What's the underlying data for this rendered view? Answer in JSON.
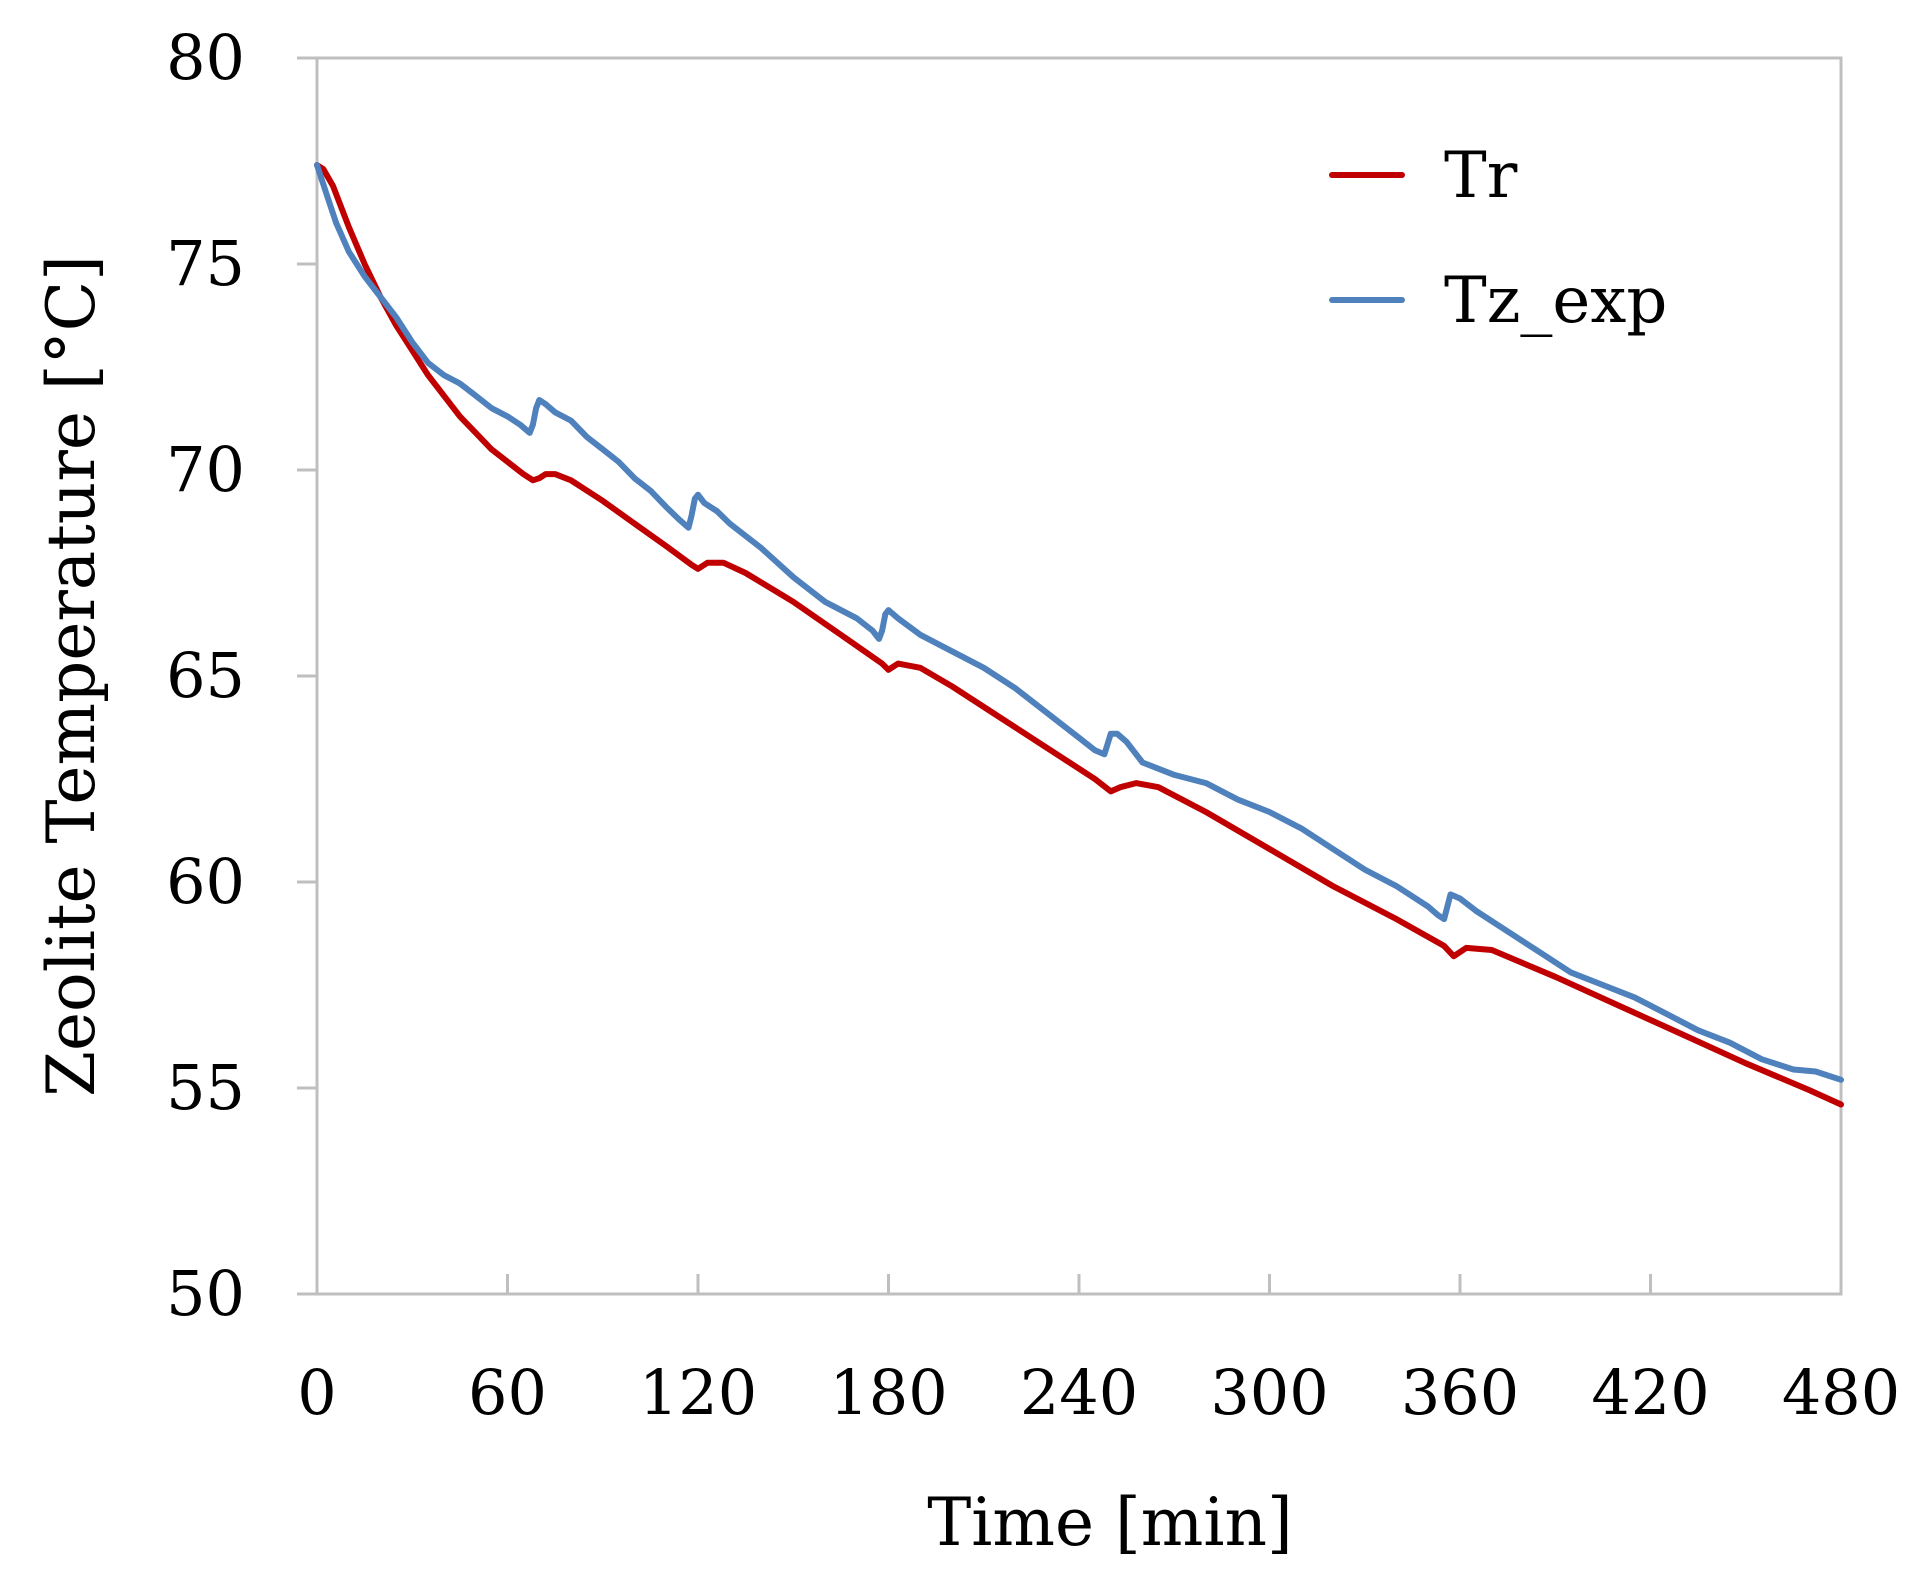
{
  "chart_data": {
    "type": "line",
    "title": "",
    "xlabel": "Time  [min]",
    "ylabel": "Zeolite Temperature  [°C]",
    "xlim": [
      0,
      480
    ],
    "ylim": [
      50,
      80
    ],
    "x_ticks": [
      "0",
      "60",
      "120",
      "180",
      "240",
      "300",
      "360",
      "420",
      "480"
    ],
    "y_ticks": [
      "50",
      "55",
      "60",
      "65",
      "70",
      "75",
      "80"
    ],
    "grid": false,
    "legend_position": "top-right",
    "colors": {
      "Tr": "#c00000",
      "Tz_exp": "#4f81bd",
      "frame": "#bfbfbf"
    },
    "series": [
      {
        "name": "Tr",
        "x": [
          0,
          2,
          5,
          10,
          15,
          20,
          25,
          30,
          35,
          40,
          45,
          50,
          55,
          60,
          65,
          68,
          70,
          72,
          75,
          80,
          90,
          100,
          110,
          118,
          120,
          123,
          128,
          135,
          150,
          165,
          178,
          180,
          183,
          190,
          200,
          215,
          230,
          245,
          250,
          253,
          258,
          265,
          280,
          300,
          320,
          340,
          355,
          358,
          362,
          370,
          390,
          410,
          430,
          450,
          470,
          480
        ],
        "values": [
          77.4,
          77.3,
          76.9,
          75.9,
          75.0,
          74.2,
          73.5,
          72.9,
          72.3,
          71.8,
          71.3,
          70.9,
          70.5,
          70.2,
          69.9,
          69.75,
          69.8,
          69.9,
          69.9,
          69.75,
          69.25,
          68.7,
          68.15,
          67.7,
          67.6,
          67.75,
          67.75,
          67.5,
          66.8,
          66.0,
          65.3,
          65.15,
          65.3,
          65.2,
          64.75,
          64.0,
          63.25,
          62.5,
          62.2,
          62.3,
          62.4,
          62.3,
          61.7,
          60.8,
          59.9,
          59.1,
          58.45,
          58.2,
          58.4,
          58.35,
          57.7,
          57.0,
          56.3,
          55.6,
          54.95,
          54.6
        ]
      },
      {
        "name": "Tz_exp",
        "x": [
          0,
          3,
          6,
          10,
          15,
          20,
          25,
          30,
          35,
          40,
          45,
          50,
          55,
          60,
          64,
          67,
          68,
          69,
          70,
          72,
          75,
          80,
          85,
          90,
          95,
          100,
          105,
          110,
          114,
          117,
          118,
          119,
          120,
          122,
          126,
          130,
          140,
          150,
          160,
          170,
          175,
          177,
          178,
          179,
          180,
          183,
          190,
          200,
          210,
          220,
          230,
          240,
          245,
          248,
          249,
          250,
          252,
          255,
          260,
          270,
          280,
          290,
          300,
          310,
          320,
          330,
          340,
          350,
          353,
          355,
          356,
          357,
          360,
          365,
          375,
          385,
          395,
          405,
          415,
          425,
          435,
          445,
          455,
          465,
          472,
          480
        ],
        "values": [
          77.4,
          76.7,
          76.0,
          75.3,
          74.7,
          74.2,
          73.7,
          73.1,
          72.6,
          72.3,
          72.1,
          71.8,
          71.5,
          71.3,
          71.1,
          70.9,
          71.1,
          71.5,
          71.7,
          71.6,
          71.4,
          71.2,
          70.8,
          70.5,
          70.2,
          69.8,
          69.5,
          69.1,
          68.8,
          68.6,
          68.9,
          69.3,
          69.4,
          69.2,
          69.0,
          68.7,
          68.1,
          67.4,
          66.8,
          66.4,
          66.1,
          65.9,
          66.1,
          66.5,
          66.6,
          66.4,
          66.0,
          65.6,
          65.2,
          64.7,
          64.1,
          63.5,
          63.2,
          63.1,
          63.35,
          63.6,
          63.6,
          63.4,
          62.9,
          62.6,
          62.4,
          62.0,
          61.7,
          61.3,
          60.8,
          60.3,
          59.9,
          59.4,
          59.2,
          59.1,
          59.4,
          59.7,
          59.6,
          59.3,
          58.8,
          58.3,
          57.8,
          57.5,
          57.2,
          56.8,
          56.4,
          56.1,
          55.7,
          55.45,
          55.4,
          55.2
        ]
      }
    ]
  }
}
